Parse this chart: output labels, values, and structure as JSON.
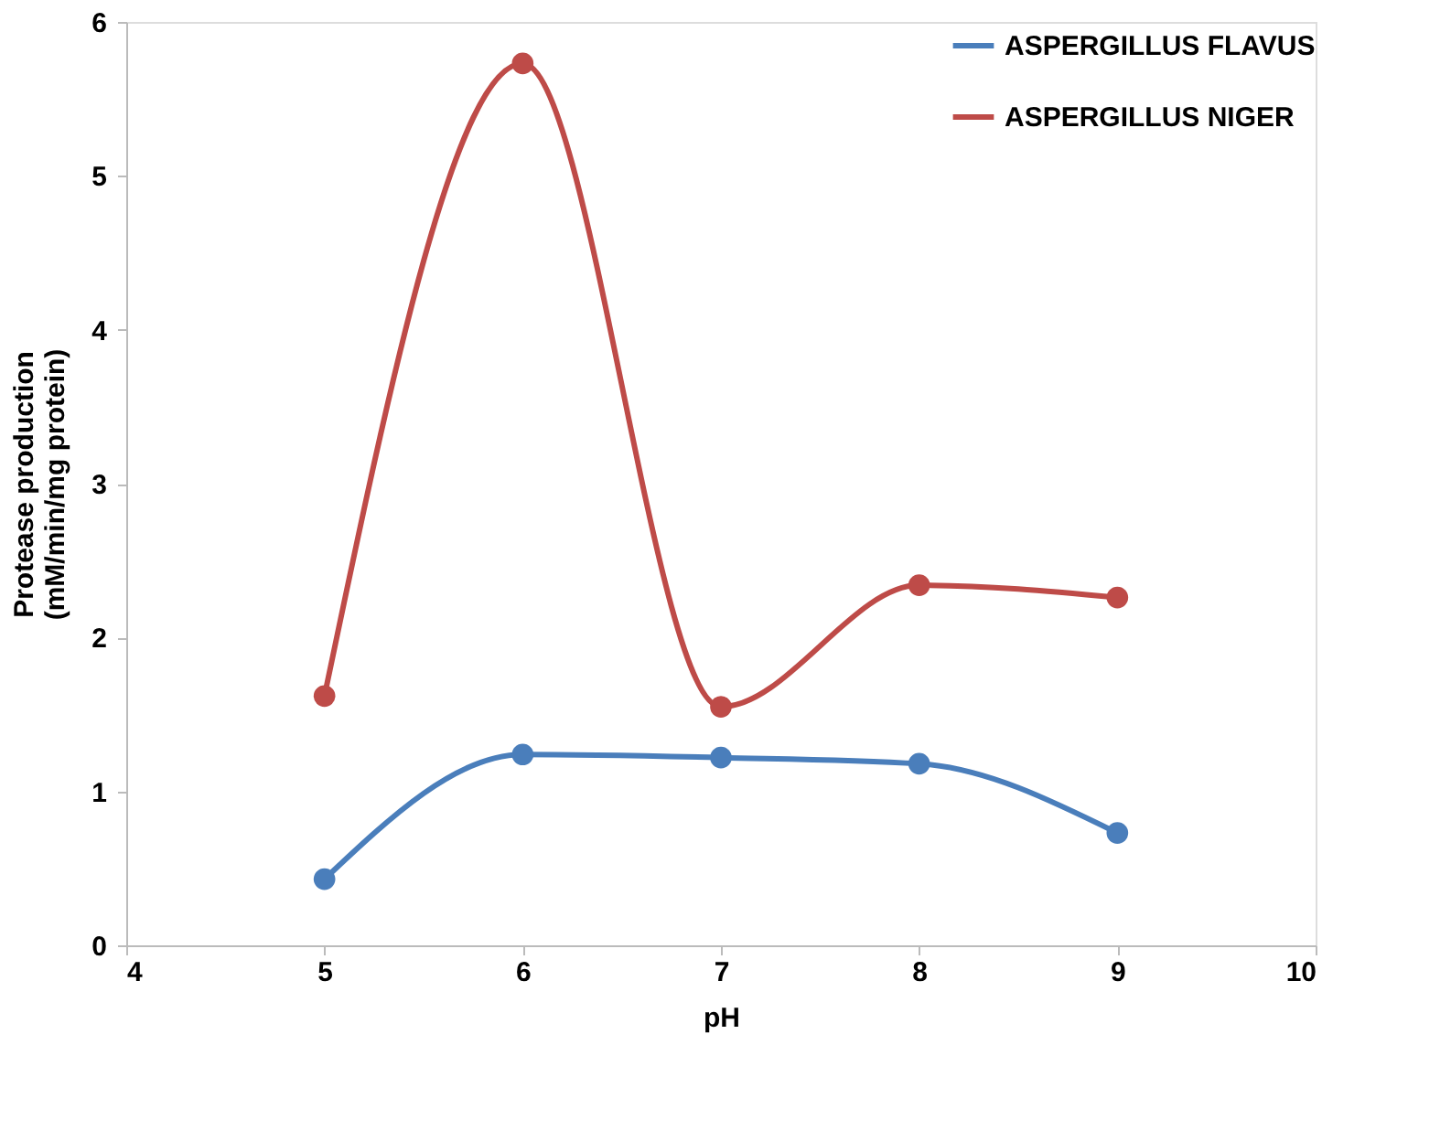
{
  "chart_data": {
    "type": "line",
    "xlabel": "pH",
    "ylabel": "Protease production\n(mM/min/mg protein)",
    "x": [
      5,
      6,
      7,
      8,
      9
    ],
    "series": [
      {
        "name": "ASPERGILLUS FLAVUS",
        "color": "#4a7ebb",
        "values": [
          0.43,
          1.24,
          1.22,
          1.18,
          0.73
        ]
      },
      {
        "name": "ASPERGILLUS NIGER",
        "color": "#be4b48",
        "values": [
          1.62,
          5.73,
          1.55,
          2.34,
          2.26
        ]
      }
    ],
    "xlim": [
      4,
      10
    ],
    "xticks": [
      4,
      5,
      6,
      7,
      8,
      9,
      10
    ],
    "ylim": [
      0,
      6
    ],
    "yticks": [
      0,
      1,
      2,
      3,
      4,
      5,
      6
    ],
    "grid": false,
    "legend": "top right",
    "marker": "circle",
    "line_style": "solid"
  }
}
